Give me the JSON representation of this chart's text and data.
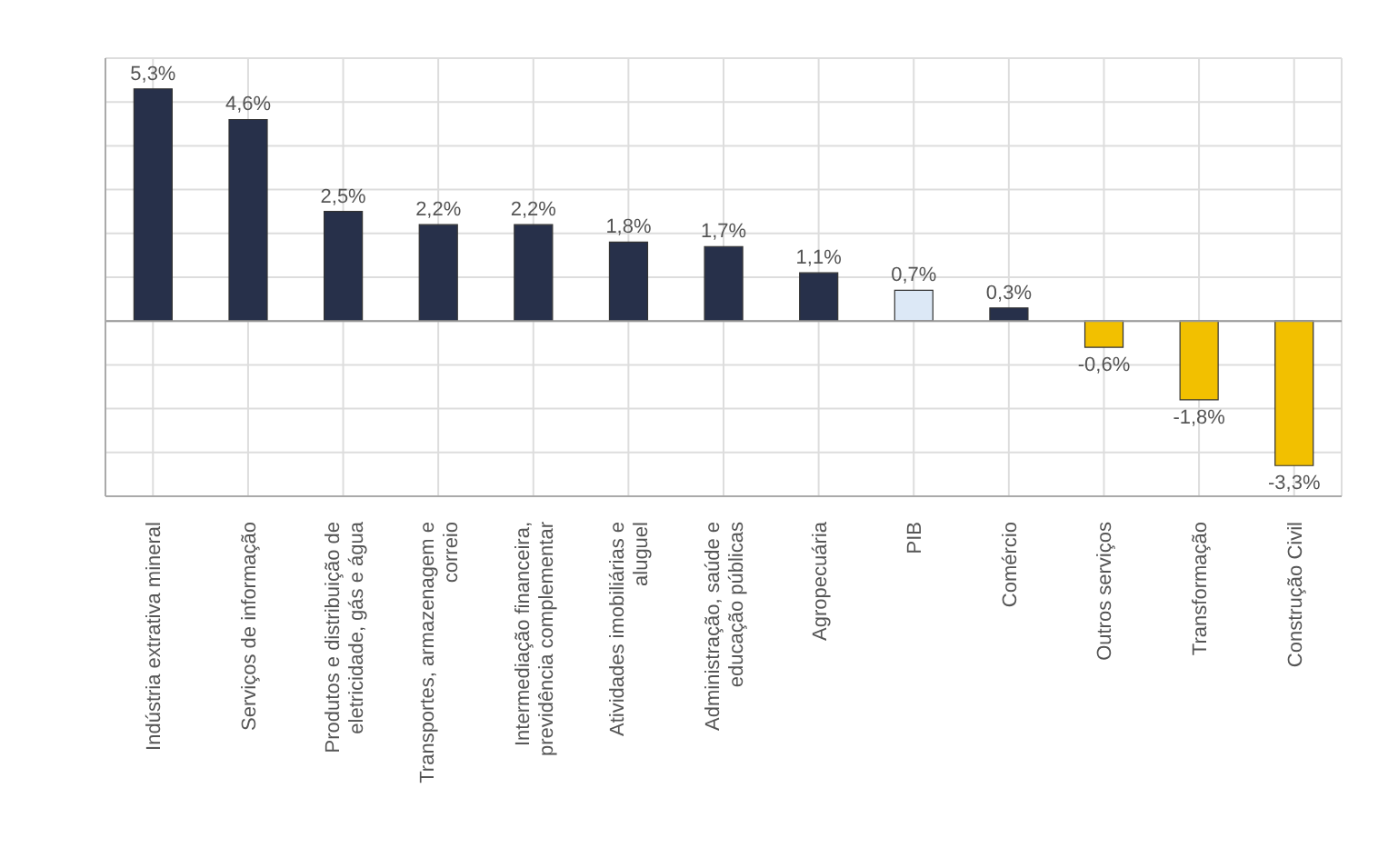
{
  "chart_data": {
    "type": "bar",
    "categories": [
      "Indústria extrativa mineral",
      "Serviços de informação",
      "Produtos e distribuição de eletricidade, gás e água",
      "Transportes, armazenagem e correio",
      "Intermediação financeira, previdência complementar",
      "Atividades imobiliárias e aluguel",
      "Administração, saúde e educação públicas",
      "Agropecuária",
      "PIB",
      "Comércio",
      "Outros serviços",
      "Transformação",
      "Construção Civil"
    ],
    "values": [
      5.3,
      4.6,
      2.5,
      2.2,
      2.2,
      1.8,
      1.7,
      1.1,
      0.7,
      0.3,
      -0.6,
      -1.8,
      -3.3
    ],
    "value_labels": [
      "5,3%",
      "4,6%",
      "2,5%",
      "2,2%",
      "2,2%",
      "1,8%",
      "1,7%",
      "1,1%",
      "0,7%",
      "0,3%",
      "-0,6%",
      "-1,8%",
      "-3,3%"
    ],
    "colors": [
      "#27304a",
      "#27304a",
      "#27304a",
      "#27304a",
      "#27304a",
      "#27304a",
      "#27304a",
      "#27304a",
      "#dce8f6",
      "#27304a",
      "#f2c000",
      "#f2c000",
      "#f2c000"
    ],
    "ylim": [
      -4,
      6
    ],
    "yticks": [
      {
        "value": -4,
        "label": null
      },
      {
        "value": -3,
        "label": null
      },
      {
        "value": -2,
        "label": null
      },
      {
        "value": -1,
        "label": null
      },
      {
        "value": 0,
        "label": null
      },
      {
        "value": 1,
        "label": null
      },
      {
        "value": 2,
        "label": null
      },
      {
        "value": 3,
        "label": null
      },
      {
        "value": 4,
        "label": null
      },
      {
        "value": 5,
        "label": null
      },
      {
        "value": 6,
        "label": null
      }
    ],
    "tick_labels": "x",
    "grid": true
  }
}
